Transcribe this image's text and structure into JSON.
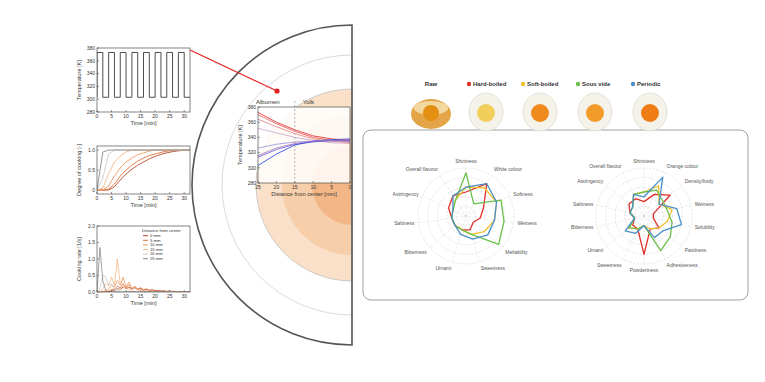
{
  "chart_data": [
    {
      "type": "line",
      "x_label": "Time [min]",
      "y_label": "Temperature [K]",
      "xlim": [
        0,
        32
      ],
      "xticks": [
        0,
        5,
        10,
        15,
        20,
        25,
        30
      ],
      "ylim": [
        280,
        380
      ],
      "yticks": [
        280,
        300,
        320,
        340,
        360,
        380
      ],
      "x": [
        0,
        0,
        2,
        2,
        4,
        4,
        6,
        6,
        8,
        8,
        10,
        10,
        12,
        12,
        14,
        14,
        16,
        16,
        18,
        18,
        20,
        20,
        22,
        22,
        24,
        24,
        26,
        26,
        28,
        28,
        30,
        30,
        32
      ],
      "series": [
        {
          "color": "#3a3a3a",
          "values": [
            303,
            373,
            373,
            303,
            303,
            373,
            373,
            303,
            303,
            373,
            373,
            303,
            303,
            373,
            373,
            303,
            303,
            373,
            373,
            303,
            303,
            373,
            373,
            303,
            303,
            373,
            373,
            303,
            303,
            373,
            373,
            303,
            303
          ]
        }
      ]
    },
    {
      "type": "line",
      "x_label": "Time [min]",
      "y_label": "Degree of cooking [-]",
      "xlim": [
        0,
        32
      ],
      "xticks": [
        0,
        5,
        10,
        15,
        20,
        25,
        30
      ],
      "ylim": [
        -0.1,
        1.1
      ],
      "yticks": [
        0,
        0.5,
        {
          "value": 1,
          "label": "1.0"
        }
      ],
      "x": [
        0,
        2,
        4,
        6,
        8,
        10,
        12,
        14,
        16,
        18,
        20,
        22,
        24,
        26,
        28,
        30,
        32
      ],
      "series": [
        {
          "color": "#b5482a",
          "values": [
            0,
            0,
            0,
            0.08,
            0.25,
            0.4,
            0.52,
            0.62,
            0.7,
            0.78,
            0.84,
            0.89,
            0.93,
            0.96,
            0.98,
            0.99,
            1
          ]
        },
        {
          "color": "#e0703a",
          "values": [
            0,
            0,
            0.02,
            0.15,
            0.35,
            0.5,
            0.62,
            0.72,
            0.8,
            0.86,
            0.9,
            0.94,
            0.97,
            0.99,
            1,
            1,
            1
          ]
        },
        {
          "color": "#f09a5e",
          "values": [
            0,
            0,
            0.1,
            0.35,
            0.55,
            0.7,
            0.8,
            0.88,
            0.93,
            0.97,
            1,
            1,
            1,
            1,
            1,
            1,
            1
          ]
        },
        {
          "color": "#f5b98a",
          "values": [
            0,
            0.05,
            0.4,
            0.7,
            0.85,
            0.95,
            1,
            1,
            1,
            1,
            1,
            1,
            1,
            1,
            1,
            1,
            1
          ]
        },
        {
          "color": "#c9c9c9",
          "values": [
            0,
            0.3,
            0.9,
            1,
            1,
            1,
            1,
            1,
            1,
            1,
            1,
            1,
            1,
            1,
            1,
            1,
            1
          ]
        },
        {
          "color": "#8a8a8a",
          "values": [
            0,
            0.95,
            1,
            1,
            1,
            1,
            1,
            1,
            1,
            1,
            1,
            1,
            1,
            1,
            1,
            1,
            1
          ]
        }
      ]
    },
    {
      "type": "line",
      "x_label": "Time [min]",
      "y_label": "Cooking rate [1/s]",
      "xlim": [
        0,
        32
      ],
      "xticks": [
        0,
        5,
        10,
        15,
        20,
        25,
        30
      ],
      "ylim": [
        0,
        2
      ],
      "yticks": [
        {
          "value": 0,
          "label": "0.0"
        },
        0.5,
        {
          "value": 1,
          "label": "1.0"
        },
        1.5,
        {
          "value": 2,
          "label": "2.0"
        }
      ],
      "legend": "upper right",
      "legend_title": "Distance from center",
      "x": [
        0,
        1,
        2,
        3,
        4,
        5,
        6,
        7,
        8,
        9,
        10,
        11,
        12,
        13,
        14,
        15,
        16,
        17,
        18,
        19,
        20,
        21,
        22,
        23,
        24,
        25,
        26,
        27,
        28,
        29,
        30,
        31,
        32
      ],
      "series": [
        {
          "name": "0 mm",
          "color": "#b5482a",
          "values": [
            0,
            0,
            0,
            0,
            0,
            0.03,
            0.05,
            0.1,
            0.08,
            0.15,
            0.1,
            0.14,
            0.09,
            0.13,
            0.08,
            0.11,
            0.06,
            0.09,
            0.05,
            0.07,
            0.04,
            0.05,
            0.03,
            0.04,
            0.02,
            0.03,
            0.02,
            0.02,
            0.01,
            0.01,
            0,
            0,
            0
          ]
        },
        {
          "name": "5 mm",
          "color": "#e0703a",
          "values": [
            0,
            0,
            0,
            0,
            0.03,
            0.08,
            0.08,
            0.18,
            0.12,
            0.25,
            0.12,
            0.22,
            0.1,
            0.18,
            0.08,
            0.13,
            0.06,
            0.09,
            0.04,
            0.06,
            0.03,
            0.04,
            0.02,
            0.02,
            0.01,
            0,
            0,
            0,
            0,
            0,
            0,
            0,
            0
          ]
        },
        {
          "name": "10 mm",
          "color": "#f09a5e",
          "values": [
            0,
            0,
            0,
            0.05,
            0.1,
            0.2,
            0.15,
            0.35,
            0.2,
            0.45,
            0.15,
            0.3,
            0.1,
            0.15,
            0.06,
            0.08,
            0.03,
            0.03,
            0.01,
            0,
            0,
            0,
            0,
            0,
            0,
            0,
            0,
            0,
            0,
            0,
            0,
            0,
            0
          ]
        },
        {
          "name": "15 mm",
          "color": "#f5b98a",
          "values": [
            0,
            0,
            0.1,
            0.25,
            0.2,
            0.45,
            0.2,
            1.0,
            0.25,
            0.15,
            0.1,
            0.08,
            0.03,
            0.02,
            0,
            0,
            0,
            0,
            0,
            0,
            0,
            0,
            0,
            0,
            0,
            0,
            0,
            0,
            0,
            0,
            0,
            0,
            0
          ]
        },
        {
          "name": "20 mm",
          "color": "#c9c9c9",
          "values": [
            0,
            0.1,
            0.5,
            0.45,
            0.2,
            0.25,
            0.08,
            0.05,
            0,
            0,
            0,
            0,
            0,
            0,
            0,
            0,
            0,
            0,
            0,
            0,
            0,
            0,
            0,
            0,
            0,
            0,
            0,
            0,
            0,
            0,
            0,
            0,
            0
          ]
        },
        {
          "name": "25 mm",
          "color": "#8a8a8a",
          "values": [
            0,
            1.35,
            0.35,
            0.05,
            0,
            0,
            0,
            0,
            0,
            0,
            0,
            0,
            0,
            0,
            0,
            0,
            0,
            0,
            0,
            0,
            0,
            0,
            0,
            0,
            0,
            0,
            0,
            0,
            0,
            0,
            0,
            0,
            0
          ]
        }
      ]
    },
    {
      "type": "line",
      "x_label": "Distance from center [mm]",
      "y_label": "Temperature [K]",
      "annotations": [
        "Albumen",
        "Yolk"
      ],
      "yolk_radius": 15,
      "xlim": [
        25,
        0
      ],
      "xticks": [
        25,
        20,
        15,
        10,
        5,
        0
      ],
      "ylim": [
        280,
        380
      ],
      "yticks": [
        280,
        300,
        320,
        340,
        360,
        380
      ],
      "x": [
        0,
        5,
        10,
        15,
        20,
        25
      ],
      "series": [
        {
          "color": "#e02020",
          "values": [
            336,
            338,
            342,
            350,
            360,
            373
          ]
        },
        {
          "color": "#e85050",
          "values": [
            334,
            336,
            340,
            348,
            358,
            370
          ]
        },
        {
          "color": "#e88080",
          "values": [
            333,
            335,
            338,
            345,
            354,
            364
          ]
        },
        {
          "color": "#c8a0c8",
          "values": [
            332,
            333,
            336,
            340,
            346,
            352
          ]
        },
        {
          "color": "#9090e0",
          "values": [
            335,
            335,
            335,
            334,
            331,
            326
          ]
        },
        {
          "color": "#5060e0",
          "values": [
            336,
            336,
            334,
            331,
            324,
            314
          ]
        },
        {
          "color": "#2040e0",
          "values": [
            338,
            337,
            335,
            330,
            318,
            303
          ]
        },
        {
          "color": "#b070b0",
          "values": [
            337,
            336,
            335,
            332,
            326,
            316
          ]
        }
      ]
    },
    {
      "type": "radar",
      "tick_labels": false,
      "rlim": [
        0,
        10
      ],
      "rticks": [
        2,
        4,
        6,
        8,
        10
      ],
      "categories": [
        "Shininess",
        "White colour",
        "Softness",
        "Wetness",
        "Meltability",
        "Sweetness",
        "Umami",
        "Bitterness",
        "Saltiness",
        "Astringency",
        "Overall flavour"
      ],
      "series": [
        {
          "color": "#e0302a",
          "values": [
            5,
            8,
            4,
            3,
            2,
            3,
            3,
            3,
            3,
            4,
            5
          ]
        },
        {
          "color": "#f2c12e",
          "values": [
            6,
            7,
            7,
            6,
            5,
            4,
            3,
            3,
            3,
            3,
            4
          ]
        },
        {
          "color": "#6cc04a",
          "values": [
            9,
            3,
            8,
            8,
            9,
            4,
            3,
            3,
            3,
            3,
            4
          ]
        },
        {
          "color": "#4a90c8",
          "values": [
            6,
            8,
            7,
            6,
            6,
            5,
            4,
            3,
            3,
            3,
            5
          ]
        }
      ]
    },
    {
      "type": "radar",
      "tick_labels": false,
      "rlim": [
        0,
        10
      ],
      "rticks": [
        2,
        4,
        6,
        8,
        10
      ],
      "categories": [
        "Shininess",
        "Orange colour",
        "Density/body",
        "Wetness",
        "Solubility",
        "Pastiness",
        "Adhesiveness",
        "Powderiness",
        "Sweetness",
        "Umami",
        "Bitterness",
        "Saltiness",
        "Astringency",
        "Overall flavour"
      ],
      "series": [
        {
          "color": "#e0302a",
          "values": [
            3,
            5,
            7,
            2,
            2,
            4,
            3,
            8,
            3,
            3,
            2,
            3,
            4,
            4
          ]
        },
        {
          "color": "#f2c12e",
          "values": [
            5,
            7,
            4,
            6,
            5,
            4,
            3,
            2,
            3,
            4,
            2,
            3,
            3,
            5
          ]
        },
        {
          "color": "#6cc04a",
          "values": [
            5,
            6,
            5,
            5,
            6,
            7,
            8,
            2,
            3,
            4,
            2,
            3,
            3,
            5
          ]
        },
        {
          "color": "#4a90c8",
          "values": [
            4,
            9,
            4,
            7,
            8,
            5,
            5,
            2,
            4,
            5,
            2,
            3,
            3,
            5
          ]
        }
      ]
    }
  ],
  "photos": [
    {
      "label": "Raw"
    },
    {
      "label": "Hard-boiled",
      "color": "#e0302a"
    },
    {
      "label": "Soft-boiled",
      "color": "#f2c12e"
    },
    {
      "label": "Sous vide",
      "color": "#6cc04a"
    },
    {
      "label": "Periodic",
      "color": "#4a90c8"
    }
  ]
}
